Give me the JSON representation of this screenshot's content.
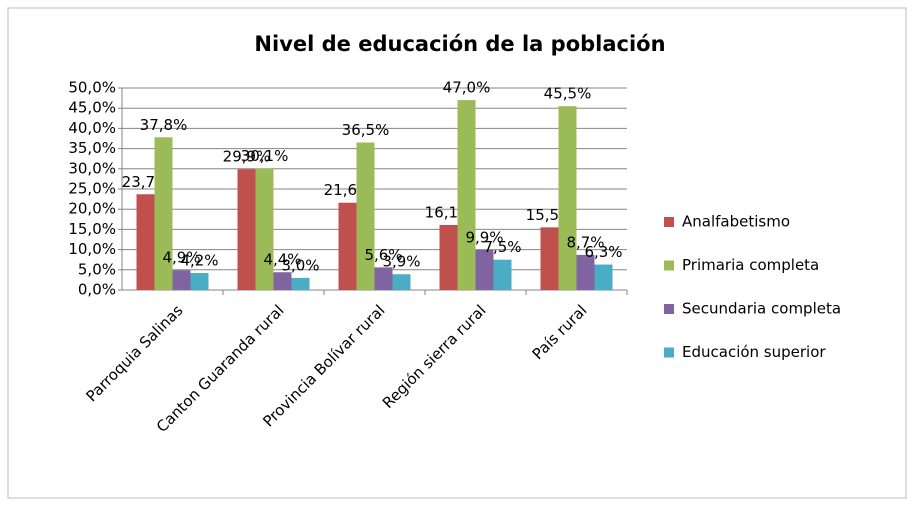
{
  "chart_data": {
    "type": "bar",
    "title": "Nivel de educación de la población",
    "categories": [
      "Parroquia Salinas",
      "Canton Guaranda rural",
      "Provincia Bolívar rural",
      "Región sierra rural",
      "País rural"
    ],
    "series": [
      {
        "name": "Analfabetismo",
        "color": "#c0504d",
        "values": [
          23.7,
          29.9,
          21.6,
          16.1,
          15.5
        ],
        "value_labels": [
          "23,7%",
          "29,9%",
          "21,6%",
          "16,1%",
          "15,5%"
        ]
      },
      {
        "name": "Primaria completa",
        "color": "#9bbb59",
        "values": [
          37.8,
          30.1,
          36.5,
          47.0,
          45.5
        ],
        "value_labels": [
          "37,8%",
          "30,1%",
          "36,5%",
          "47,0%",
          "45,5%"
        ]
      },
      {
        "name": "Secundaria completa",
        "color": "#8064a2",
        "values": [
          4.9,
          4.4,
          5.6,
          9.9,
          8.7
        ],
        "value_labels": [
          "4,9%",
          "4,4%",
          "5,6%",
          "9,9%",
          "8,7%"
        ]
      },
      {
        "name": "Educación superior",
        "color": "#4bacc6",
        "values": [
          4.2,
          3.0,
          3.9,
          7.5,
          6.3
        ],
        "value_labels": [
          "4,2%",
          "3,0%",
          "3,9%",
          "7,5%",
          "6,3%"
        ]
      }
    ],
    "ylim": [
      0,
      50
    ],
    "yticks": [
      {
        "value": 0,
        "label": "0,0%"
      },
      {
        "value": 5,
        "label": "5,0%"
      },
      {
        "value": 10,
        "label": "10,0%"
      },
      {
        "value": 15,
        "label": "15,0%"
      },
      {
        "value": 20,
        "label": "20,0%"
      },
      {
        "value": 25,
        "label": "25,0%"
      },
      {
        "value": 30,
        "label": "30,0%"
      },
      {
        "value": 35,
        "label": "35,0%"
      },
      {
        "value": 40,
        "label": "40,0%"
      },
      {
        "value": 45,
        "label": "45,0%"
      },
      {
        "value": 50,
        "label": "50,0%"
      }
    ],
    "grid": true,
    "legend": "right"
  }
}
